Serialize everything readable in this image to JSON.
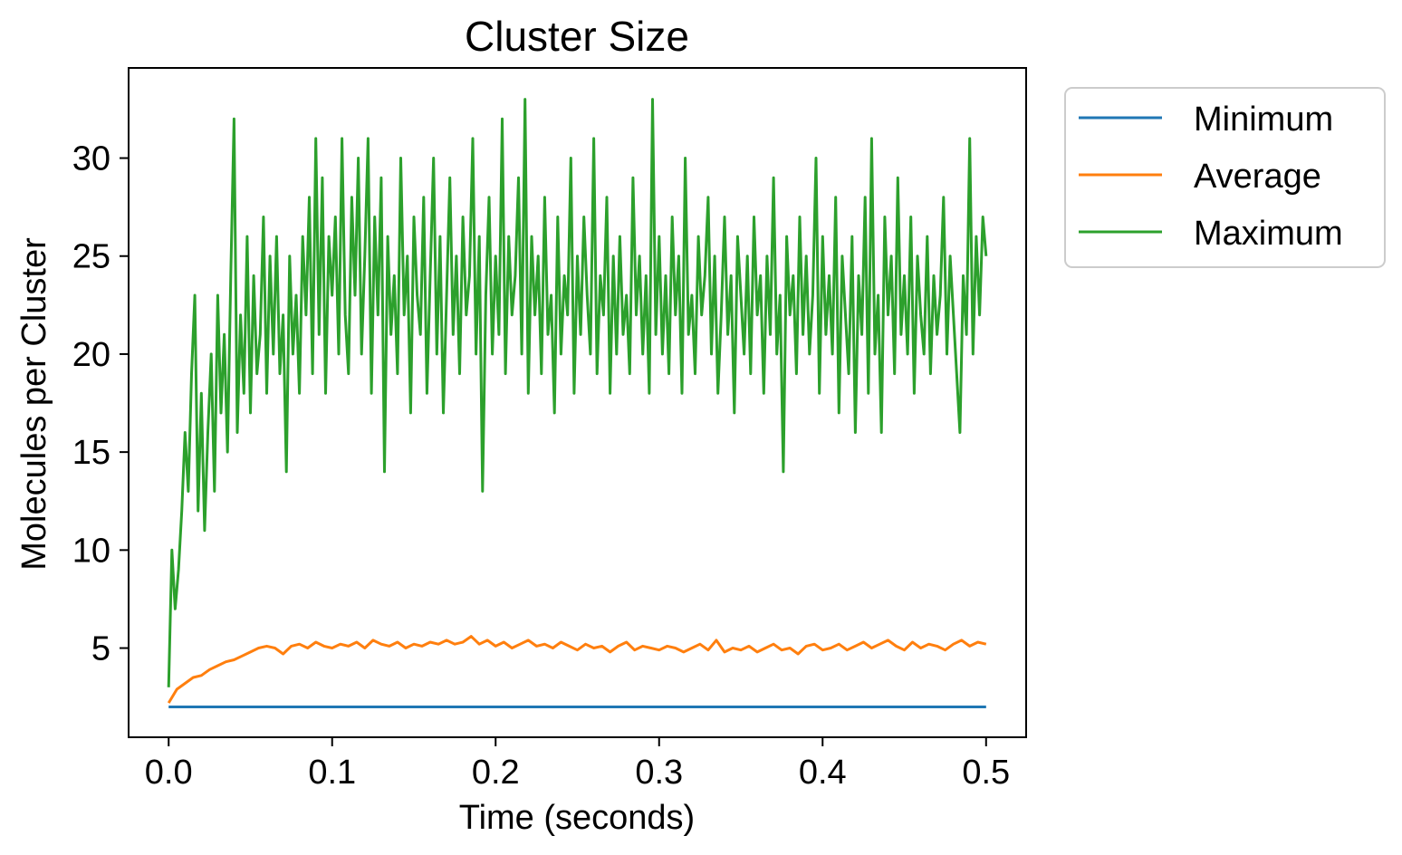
{
  "chart_data": {
    "type": "line",
    "title": "Cluster Size",
    "xlabel": "Time (seconds)",
    "ylabel": "Molecules per Cluster",
    "xlim": [
      -0.0245,
      0.5245
    ],
    "ylim": [
      0.45,
      34.6
    ],
    "xticks": [
      0.0,
      0.1,
      0.2,
      0.3,
      0.4,
      0.5
    ],
    "xtick_labels": [
      "0.0",
      "0.1",
      "0.2",
      "0.3",
      "0.4",
      "0.5"
    ],
    "yticks": [
      5,
      10,
      15,
      20,
      25,
      30
    ],
    "ytick_labels": [
      "5",
      "10",
      "15",
      "20",
      "25",
      "30"
    ],
    "grid": false,
    "legend_position": "outside-right-top",
    "series": [
      {
        "name": "Minimum",
        "color": "#1f77b4",
        "x": [
          0.0,
          0.5
        ],
        "values": [
          2,
          2
        ]
      },
      {
        "name": "Average",
        "color": "#ff7f0e",
        "x": [
          0.0,
          0.005,
          0.01,
          0.015,
          0.02,
          0.025,
          0.03,
          0.035,
          0.04,
          0.045,
          0.05,
          0.055,
          0.06,
          0.065,
          0.07,
          0.075,
          0.08,
          0.085,
          0.09,
          0.095,
          0.1,
          0.105,
          0.11,
          0.115,
          0.12,
          0.125,
          0.13,
          0.135,
          0.14,
          0.145,
          0.15,
          0.155,
          0.16,
          0.165,
          0.17,
          0.175,
          0.18,
          0.185,
          0.19,
          0.195,
          0.2,
          0.205,
          0.21,
          0.215,
          0.22,
          0.225,
          0.23,
          0.235,
          0.24,
          0.245,
          0.25,
          0.255,
          0.26,
          0.265,
          0.27,
          0.275,
          0.28,
          0.285,
          0.29,
          0.295,
          0.3,
          0.305,
          0.31,
          0.315,
          0.32,
          0.325,
          0.33,
          0.335,
          0.34,
          0.345,
          0.35,
          0.355,
          0.36,
          0.365,
          0.37,
          0.375,
          0.38,
          0.385,
          0.39,
          0.395,
          0.4,
          0.405,
          0.41,
          0.415,
          0.42,
          0.425,
          0.43,
          0.435,
          0.44,
          0.445,
          0.45,
          0.455,
          0.46,
          0.465,
          0.47,
          0.475,
          0.48,
          0.485,
          0.49,
          0.495,
          0.5
        ],
        "values": [
          2.2,
          2.9,
          3.2,
          3.5,
          3.6,
          3.9,
          4.1,
          4.3,
          4.4,
          4.6,
          4.8,
          5.0,
          5.1,
          5.0,
          4.7,
          5.1,
          5.2,
          5.0,
          5.3,
          5.1,
          5.0,
          5.2,
          5.1,
          5.3,
          5.0,
          5.4,
          5.2,
          5.1,
          5.3,
          5.0,
          5.2,
          5.1,
          5.3,
          5.2,
          5.4,
          5.2,
          5.3,
          5.6,
          5.2,
          5.4,
          5.1,
          5.3,
          5.0,
          5.2,
          5.4,
          5.1,
          5.2,
          5.0,
          5.3,
          5.1,
          4.9,
          5.2,
          5.0,
          5.1,
          4.8,
          5.1,
          5.3,
          4.9,
          5.1,
          5.0,
          4.9,
          5.1,
          5.0,
          4.8,
          5.0,
          5.2,
          4.9,
          5.4,
          4.8,
          5.0,
          4.9,
          5.1,
          4.8,
          5.0,
          5.2,
          4.9,
          5.0,
          4.7,
          5.1,
          5.2,
          4.9,
          5.0,
          5.2,
          4.9,
          5.1,
          5.3,
          5.0,
          5.2,
          5.4,
          5.1,
          4.9,
          5.3,
          5.0,
          5.2,
          5.1,
          4.9,
          5.2,
          5.4,
          5.1,
          5.3,
          5.2
        ]
      },
      {
        "name": "Maximum",
        "color": "#2ca02c",
        "x": [
          0.0,
          0.002,
          0.004,
          0.006,
          0.008,
          0.01,
          0.012,
          0.014,
          0.016,
          0.018,
          0.02,
          0.022,
          0.024,
          0.026,
          0.028,
          0.03,
          0.032,
          0.034,
          0.036,
          0.038,
          0.04,
          0.042,
          0.044,
          0.046,
          0.048,
          0.05,
          0.052,
          0.054,
          0.056,
          0.058,
          0.06,
          0.062,
          0.064,
          0.066,
          0.068,
          0.07,
          0.072,
          0.074,
          0.076,
          0.078,
          0.08,
          0.082,
          0.084,
          0.086,
          0.088,
          0.09,
          0.092,
          0.094,
          0.096,
          0.098,
          0.1,
          0.102,
          0.104,
          0.106,
          0.108,
          0.11,
          0.112,
          0.114,
          0.116,
          0.118,
          0.12,
          0.122,
          0.124,
          0.126,
          0.128,
          0.13,
          0.132,
          0.134,
          0.136,
          0.138,
          0.14,
          0.142,
          0.144,
          0.146,
          0.148,
          0.15,
          0.152,
          0.154,
          0.156,
          0.158,
          0.16,
          0.162,
          0.164,
          0.166,
          0.168,
          0.17,
          0.172,
          0.174,
          0.176,
          0.178,
          0.18,
          0.182,
          0.184,
          0.186,
          0.188,
          0.19,
          0.192,
          0.194,
          0.196,
          0.198,
          0.2,
          0.202,
          0.204,
          0.206,
          0.208,
          0.21,
          0.212,
          0.214,
          0.216,
          0.218,
          0.22,
          0.222,
          0.224,
          0.226,
          0.228,
          0.23,
          0.232,
          0.234,
          0.236,
          0.238,
          0.24,
          0.242,
          0.244,
          0.246,
          0.248,
          0.25,
          0.252,
          0.254,
          0.256,
          0.258,
          0.26,
          0.262,
          0.264,
          0.266,
          0.268,
          0.27,
          0.272,
          0.274,
          0.276,
          0.278,
          0.28,
          0.282,
          0.284,
          0.286,
          0.288,
          0.29,
          0.292,
          0.294,
          0.296,
          0.298,
          0.3,
          0.302,
          0.304,
          0.306,
          0.308,
          0.31,
          0.312,
          0.314,
          0.316,
          0.318,
          0.32,
          0.322,
          0.324,
          0.326,
          0.328,
          0.33,
          0.332,
          0.334,
          0.336,
          0.338,
          0.34,
          0.342,
          0.344,
          0.346,
          0.348,
          0.35,
          0.352,
          0.354,
          0.356,
          0.358,
          0.36,
          0.362,
          0.364,
          0.366,
          0.368,
          0.37,
          0.372,
          0.374,
          0.376,
          0.378,
          0.38,
          0.382,
          0.384,
          0.386,
          0.388,
          0.39,
          0.392,
          0.394,
          0.396,
          0.398,
          0.4,
          0.402,
          0.404,
          0.406,
          0.408,
          0.41,
          0.412,
          0.414,
          0.416,
          0.418,
          0.42,
          0.422,
          0.424,
          0.426,
          0.428,
          0.43,
          0.432,
          0.434,
          0.436,
          0.438,
          0.44,
          0.442,
          0.444,
          0.446,
          0.448,
          0.45,
          0.452,
          0.454,
          0.456,
          0.458,
          0.46,
          0.462,
          0.464,
          0.466,
          0.468,
          0.47,
          0.472,
          0.474,
          0.476,
          0.478,
          0.48,
          0.482,
          0.484,
          0.486,
          0.488,
          0.49,
          0.492,
          0.494,
          0.496,
          0.498,
          0.5
        ],
        "values": [
          3,
          10,
          7,
          9,
          12,
          16,
          13,
          19,
          23,
          12,
          18,
          11,
          16,
          20,
          13,
          23,
          17,
          21,
          15,
          24,
          32,
          16,
          22,
          18,
          26,
          17,
          24,
          19,
          21,
          27,
          18,
          25,
          20,
          26,
          19,
          22,
          14,
          25,
          20,
          23,
          18,
          26,
          22,
          28,
          19,
          31,
          21,
          29,
          18,
          26,
          23,
          27,
          20,
          31,
          22,
          19,
          28,
          23,
          30,
          20,
          25,
          31,
          18,
          27,
          22,
          29,
          14,
          26,
          21,
          24,
          19,
          30,
          22,
          25,
          17,
          27,
          23,
          21,
          28,
          18,
          24,
          30,
          20,
          26,
          17,
          23,
          29,
          21,
          25,
          19,
          27,
          22,
          24,
          31,
          20,
          26,
          13,
          23,
          28,
          20,
          25,
          21,
          32,
          19,
          26,
          22,
          24,
          29,
          20,
          33,
          18,
          26,
          22,
          25,
          19,
          28,
          21,
          23,
          17,
          27,
          20,
          24,
          22,
          30,
          18,
          25,
          21,
          27,
          23,
          20,
          31,
          19,
          24,
          22,
          28,
          18,
          25,
          20,
          26,
          21,
          23,
          19,
          29,
          22,
          25,
          20,
          24,
          18,
          33,
          21,
          26,
          20,
          24,
          19,
          27,
          22,
          25,
          18,
          30,
          21,
          23,
          19,
          26,
          22,
          24,
          28,
          20,
          25,
          18,
          22,
          27,
          21,
          24,
          17,
          26,
          23,
          20,
          25,
          19,
          27,
          22,
          24,
          18,
          25,
          21,
          29,
          20,
          23,
          14,
          26,
          22,
          24,
          19,
          27,
          21,
          25,
          20,
          23,
          30,
          18,
          26,
          21,
          24,
          20,
          28,
          17,
          25,
          22,
          19,
          26,
          16,
          24,
          21,
          28,
          18,
          31,
          20,
          23,
          16,
          27,
          22,
          25,
          19,
          29,
          21,
          24,
          20,
          27,
          18,
          25,
          22,
          20,
          26,
          19,
          24,
          21,
          23,
          28,
          20,
          25,
          22,
          19,
          16,
          24,
          21,
          31,
          20,
          26,
          22,
          27,
          25
        ]
      }
    ]
  }
}
